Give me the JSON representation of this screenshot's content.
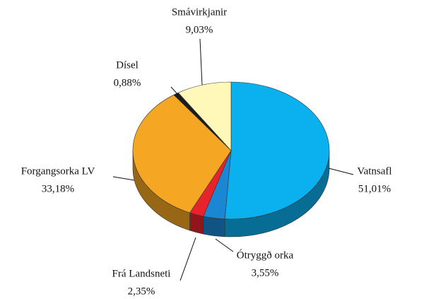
{
  "chart_data": {
    "type": "pie3d",
    "categories": [
      "Vatnsafl",
      "Ótryggð orka",
      "Frá Landsneti",
      "Forgangsorka LV",
      "Dísel",
      "Smávirkjanir"
    ],
    "values": [
      51.01,
      3.55,
      2.35,
      33.18,
      0.88,
      9.03
    ],
    "value_labels": [
      "51,01%",
      "3,55%",
      "2,35%",
      "33,18%",
      "0,88%",
      "9,03%"
    ],
    "colors": [
      "#0bb0ef",
      "#1b86d4",
      "#e8232b",
      "#f5a623",
      "#1c1c1c",
      "#fff8b8"
    ]
  }
}
